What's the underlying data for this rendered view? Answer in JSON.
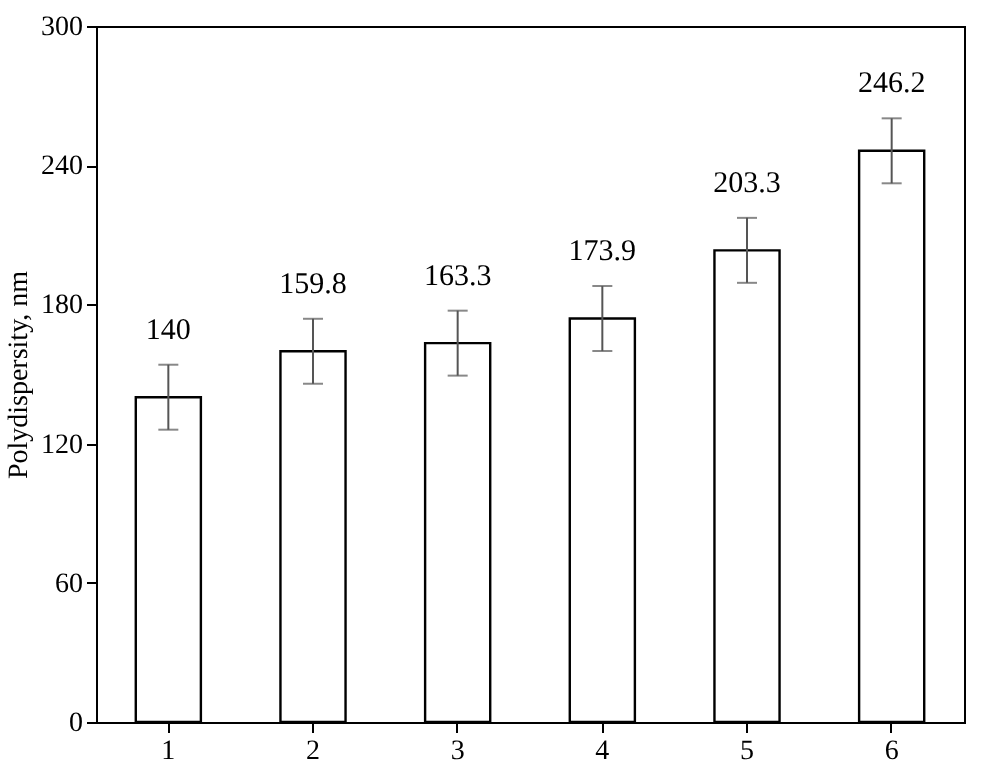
{
  "chart_data": {
    "type": "bar",
    "ylabel": "Polydispersity, nm",
    "categories": [
      "1",
      "2",
      "3",
      "4",
      "5",
      "6"
    ],
    "values": [
      140,
      159.8,
      163.3,
      173.9,
      203.3,
      246.2
    ],
    "errors": [
      14,
      14,
      14,
      14,
      14,
      14
    ],
    "color": "#ffffff",
    "ylim": [
      0,
      300
    ],
    "yticks": [
      0,
      60,
      120,
      180,
      240,
      300
    ],
    "data_labels": true,
    "grid": false
  }
}
